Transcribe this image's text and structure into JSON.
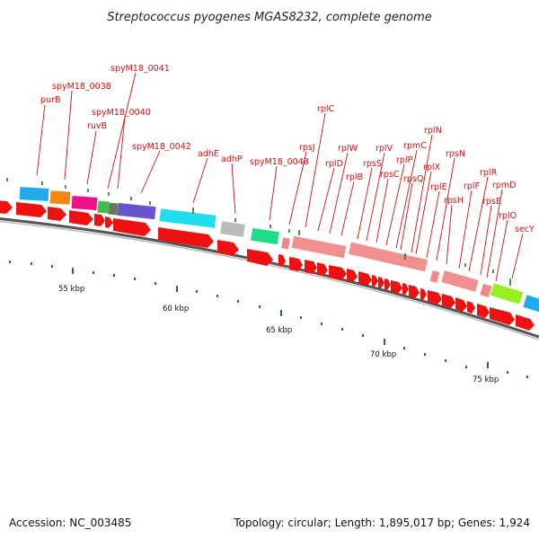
{
  "title": "Streptococcus pyogenes MGAS8232, complete genome",
  "footer": {
    "accession": "Accession: NC_003485",
    "summary": "Topology: circular; Length: 1,895,017 bp; Genes: 1,924"
  },
  "colors": {
    "label": "#d01010",
    "cds_arrow": "#ee1111",
    "rna_box": "#f09090",
    "tick_major": "#1a7a1a"
  },
  "scale": {
    "unit_labels": [
      "55 kbp",
      "60 kbp",
      "65 kbp",
      "70 kbp",
      "75 kbp"
    ]
  },
  "gene_labels": [
    "purB",
    "spyM18_0038",
    "ruvB",
    "spyM18_0041",
    "spyM18_0040",
    "spyM18_0042",
    "adhE",
    "adhP",
    "spyM18_0048",
    "rplC",
    "rpsJ",
    "rplD",
    "rplW",
    "rplB",
    "rpsS",
    "rplV",
    "rpsC",
    "rplP",
    "rpmC",
    "rpsQ",
    "rplN",
    "rplX",
    "rplE",
    "rpsN",
    "rpsH",
    "rplF",
    "rplR",
    "rpsE",
    "rpmD",
    "rplO",
    "secY"
  ]
}
